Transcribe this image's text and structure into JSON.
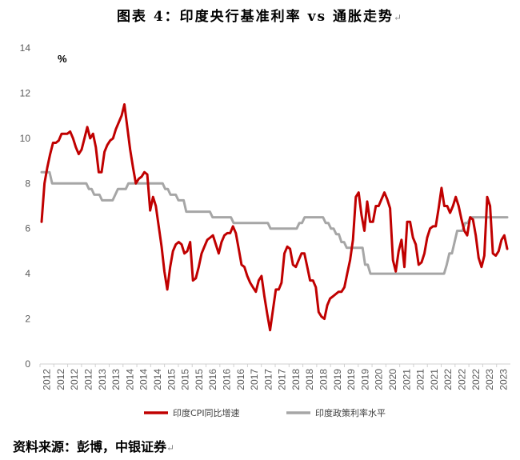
{
  "title": "图表 4：印度央行基准利率 vs 通胀走势",
  "source": "资料来源：彭博，中银证券",
  "return_mark": "↵",
  "chart_data": {
    "type": "line",
    "ylabel": "%",
    "ylim": [
      0,
      14
    ],
    "yticks": [
      "0",
      "2",
      "4",
      "6",
      "8",
      "10",
      "12",
      "14"
    ],
    "xticks": [
      "2012",
      "2012",
      "2012",
      "2012",
      "2013",
      "2013",
      "2014",
      "2014",
      "2014",
      "2015",
      "2015",
      "2015",
      "2016",
      "2016",
      "2016",
      "2017",
      "2017",
      "2017",
      "2018",
      "2018",
      "2018",
      "2019",
      "2019",
      "2019",
      "2020",
      "2020",
      "2021",
      "2021",
      "2021",
      "2022",
      "2022",
      "2022",
      "2023",
      "2023"
    ],
    "series": [
      {
        "name": "印度CPI同比增速",
        "color": "#C00000",
        "values": [
          6.3,
          8.0,
          8.7,
          9.3,
          9.8,
          9.8,
          9.9,
          10.2,
          10.2,
          10.2,
          10.3,
          10.0,
          9.6,
          9.3,
          9.5,
          10.0,
          10.5,
          10.0,
          10.2,
          9.6,
          8.5,
          8.5,
          9.4,
          9.7,
          9.9,
          10.0,
          10.4,
          10.7,
          11.0,
          11.5,
          10.5,
          9.5,
          8.7,
          8.0,
          8.2,
          8.3,
          8.5,
          8.4,
          6.8,
          7.4,
          7.0,
          6.1,
          5.2,
          4.1,
          3.3,
          4.3,
          5.0,
          5.3,
          5.4,
          5.3,
          4.9,
          5.0,
          5.4,
          3.7,
          3.8,
          4.3,
          4.9,
          5.2,
          5.5,
          5.6,
          5.7,
          5.3,
          4.9,
          5.4,
          5.7,
          5.8,
          5.8,
          6.1,
          5.8,
          5.1,
          4.4,
          4.3,
          3.9,
          3.6,
          3.4,
          3.2,
          3.7,
          3.9,
          3.0,
          2.2,
          1.5,
          2.4,
          3.3,
          3.3,
          3.6,
          4.9,
          5.2,
          5.1,
          4.4,
          4.3,
          4.6,
          4.9,
          4.9,
          4.3,
          3.7,
          3.7,
          3.4,
          2.3,
          2.1,
          2.0,
          2.6,
          2.9,
          3.0,
          3.1,
          3.2,
          3.2,
          3.4,
          4.0,
          4.6,
          5.5,
          7.4,
          7.6,
          6.6,
          5.9,
          7.2,
          6.3,
          6.3,
          7.0,
          7.0,
          7.3,
          7.6,
          7.3,
          6.9,
          4.6,
          4.1,
          5.0,
          5.5,
          4.3,
          6.3,
          6.3,
          5.6,
          5.3,
          4.4,
          4.5,
          4.9,
          5.6,
          6.0,
          6.1,
          6.1,
          6.9,
          7.8,
          7.0,
          7.0,
          6.7,
          7.0,
          7.4,
          7.0,
          6.4,
          5.9,
          5.7,
          6.5,
          6.4,
          5.7,
          4.7,
          4.3,
          4.8,
          7.4,
          7.0,
          4.9,
          4.8,
          5.0,
          5.5,
          5.7,
          5.1
        ]
      },
      {
        "name": "印度政策利率水平",
        "color": "#A6A6A6",
        "values": [
          8.5,
          8.5,
          8.5,
          8.5,
          8.0,
          8.0,
          8.0,
          8.0,
          8.0,
          8.0,
          8.0,
          8.0,
          8.0,
          8.0,
          8.0,
          8.0,
          8.0,
          8.0,
          7.75,
          7.75,
          7.5,
          7.5,
          7.5,
          7.25,
          7.25,
          7.25,
          7.25,
          7.25,
          7.5,
          7.75,
          7.75,
          7.75,
          7.75,
          8.0,
          8.0,
          8.0,
          8.0,
          8.0,
          8.0,
          8.0,
          8.0,
          8.0,
          8.0,
          8.0,
          8.0,
          8.0,
          8.0,
          7.75,
          7.75,
          7.5,
          7.5,
          7.5,
          7.25,
          7.25,
          7.25,
          6.75,
          6.75,
          6.75,
          6.75,
          6.75,
          6.75,
          6.75,
          6.75,
          6.75,
          6.75,
          6.5,
          6.5,
          6.5,
          6.5,
          6.5,
          6.5,
          6.5,
          6.5,
          6.25,
          6.25,
          6.25,
          6.25,
          6.25,
          6.25,
          6.25,
          6.25,
          6.25,
          6.25,
          6.25,
          6.25,
          6.25,
          6.25,
          6.0,
          6.0,
          6.0,
          6.0,
          6.0,
          6.0,
          6.0,
          6.0,
          6.0,
          6.0,
          6.0,
          6.25,
          6.25,
          6.5,
          6.5,
          6.5,
          6.5,
          6.5,
          6.5,
          6.5,
          6.5,
          6.25,
          6.25,
          6.0,
          6.0,
          5.75,
          5.75,
          5.4,
          5.4,
          5.15,
          5.15,
          5.15,
          5.15,
          5.15,
          5.15,
          5.15,
          4.4,
          4.4,
          4.0,
          4.0,
          4.0,
          4.0,
          4.0,
          4.0,
          4.0,
          4.0,
          4.0,
          4.0,
          4.0,
          4.0,
          4.0,
          4.0,
          4.0,
          4.0,
          4.0,
          4.0,
          4.0,
          4.0,
          4.0,
          4.0,
          4.0,
          4.0,
          4.0,
          4.0,
          4.0,
          4.0,
          4.0,
          4.4,
          4.9,
          4.9,
          5.4,
          5.9,
          5.9,
          5.9,
          6.25,
          6.25,
          6.5,
          6.5,
          6.5,
          6.5,
          6.5,
          6.5,
          6.5,
          6.5,
          6.5,
          6.5,
          6.5,
          6.5,
          6.5,
          6.5,
          6.5
        ]
      }
    ]
  }
}
